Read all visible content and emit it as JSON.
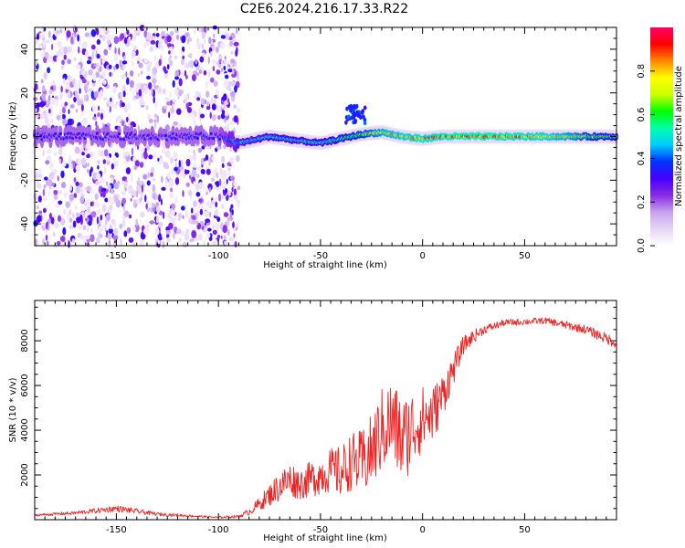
{
  "title": "C2E6.2024.216.17.33.R22",
  "chart_data": [
    {
      "type": "heatmap",
      "title": "C2E6.2024.216.17.33.R22",
      "xlabel": "Height of straight line (km)",
      "ylabel": "Frequency (Hz)",
      "xlim": [
        -190,
        95
      ],
      "ylim": [
        -50,
        50
      ],
      "x_ticks": [
        -150,
        -100,
        -50,
        0,
        50
      ],
      "y_ticks": [
        -40,
        -20,
        0,
        20,
        40
      ],
      "grid": false,
      "colorbar": {
        "label": "Normalized spectral amplitude",
        "range": [
          0.0,
          1.0
        ],
        "ticks": [
          0.0,
          0.2,
          0.4,
          0.6,
          0.8
        ],
        "colors": [
          "#ffffff",
          "#e6d5f5",
          "#c6a2f0",
          "#8a2be2",
          "#4400ff",
          "#0033ff",
          "#00ccff",
          "#00ffaa",
          "#00ff00",
          "#ccff00",
          "#ffff00",
          "#ff8800",
          "#ff0000",
          "#ff0066"
        ]
      },
      "ridge": {
        "x": [
          -190,
          -150,
          -100,
          -90,
          -75,
          -60,
          -50,
          -40,
          -30,
          -20,
          -10,
          0,
          10,
          20,
          30,
          50,
          70,
          95
        ],
        "frequency": [
          0,
          0,
          0,
          -3,
          0,
          -2,
          -3,
          -1,
          1,
          2,
          0,
          -1,
          0,
          0,
          0,
          0,
          0,
          0
        ],
        "amplitude": [
          0.35,
          0.35,
          0.35,
          0.5,
          0.55,
          0.55,
          0.55,
          0.6,
          0.7,
          0.8,
          0.85,
          0.9,
          0.92,
          0.95,
          0.95,
          0.9,
          0.8,
          0.6
        ]
      }
    },
    {
      "type": "line",
      "xlabel": "Height of straight line (km)",
      "ylabel": "SNR (10 * v/v)",
      "xlim": [
        -190,
        95
      ],
      "ylim": [
        0,
        9800
      ],
      "x_ticks": [
        -150,
        -100,
        -50,
        0,
        50
      ],
      "y_ticks": [
        2000,
        4000,
        6000,
        8000
      ],
      "grid": false,
      "series": [
        {
          "color": "#ee2222",
          "x": [
            -190,
            -170,
            -150,
            -130,
            -110,
            -100,
            -90,
            -85,
            -80,
            -75,
            -70,
            -65,
            -60,
            -55,
            -50,
            -45,
            -40,
            -35,
            -30,
            -25,
            -20,
            -15,
            -10,
            -5,
            0,
            5,
            10,
            15,
            20,
            25,
            30,
            40,
            50,
            60,
            70,
            80,
            90,
            95
          ],
          "values": [
            200,
            300,
            500,
            250,
            150,
            100,
            150,
            350,
            700,
            1100,
            1500,
            1800,
            1600,
            1800,
            2000,
            2200,
            2100,
            2600,
            2500,
            3000,
            4000,
            4400,
            3500,
            4100,
            4500,
            4700,
            5600,
            6700,
            7800,
            8200,
            8500,
            8800,
            8850,
            8900,
            8700,
            8500,
            8100,
            7900
          ],
          "noise": [
            50,
            80,
            150,
            80,
            50,
            40,
            60,
            150,
            300,
            500,
            700,
            800,
            700,
            800,
            900,
            1000,
            1200,
            1300,
            1500,
            1700,
            1900,
            2000,
            2000,
            1800,
            1500,
            1300,
            1000,
            700,
            400,
            300,
            200,
            150,
            150,
            150,
            180,
            200,
            250,
            250
          ]
        }
      ]
    }
  ]
}
